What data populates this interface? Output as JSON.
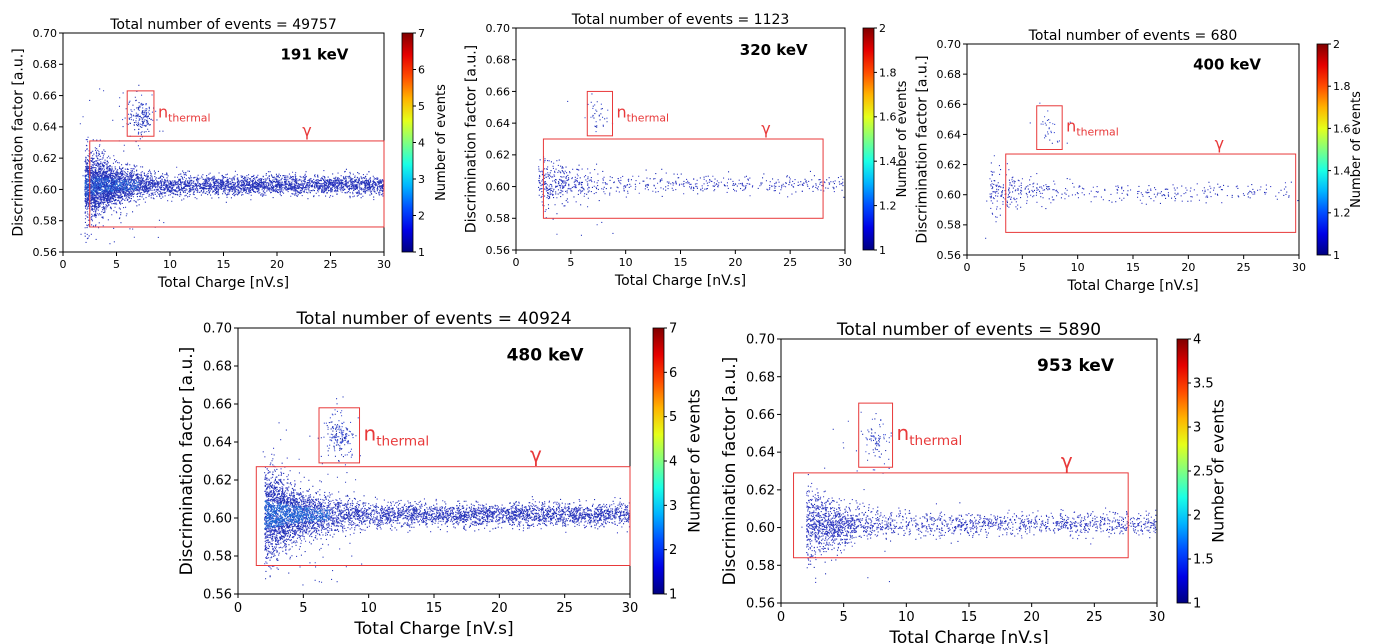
{
  "chart_data": [
    {
      "type": "heatmap",
      "title": "Total number of events = 49757",
      "energy_label": "191 keV",
      "xlabel": "Total Charge [nV.s]",
      "ylabel": "Discrimination factor [a.u.]",
      "xlim": [
        0,
        30
      ],
      "ylim": [
        0.56,
        0.7
      ],
      "xticks": [
        0,
        5,
        10,
        15,
        20,
        25,
        30
      ],
      "yticks": [
        0.56,
        0.58,
        0.6,
        0.62,
        0.64,
        0.66,
        0.68,
        0.7
      ],
      "colorbar": {
        "label": "Number of events",
        "min": 1,
        "max": 7,
        "ticks": [
          1,
          2,
          3,
          4,
          5,
          6,
          7
        ]
      },
      "regions": [
        {
          "label": "n",
          "label_sub": "thermal",
          "x": [
            6.0,
            8.5
          ],
          "y": [
            0.634,
            0.663
          ]
        },
        {
          "label": "γ",
          "x": [
            2.5,
            30.0
          ],
          "y": [
            0.576,
            0.631
          ]
        }
      ],
      "distribution": {
        "gamma_center": 0.603,
        "gamma_spread_low_charge": 0.012,
        "gamma_spread_high_charge": 0.003,
        "thermal_center_x": 7.3,
        "thermal_center_y": 0.646,
        "density": "high"
      }
    },
    {
      "type": "heatmap",
      "title": "Total number of events = 1123",
      "energy_label": "320 keV",
      "xlabel": "Total Charge [nV.s]",
      "ylabel": "Discrimination factor [a.u.]",
      "xlim": [
        0,
        30
      ],
      "ylim": [
        0.56,
        0.7
      ],
      "xticks": [
        0,
        5,
        10,
        15,
        20,
        25,
        30
      ],
      "yticks": [
        0.56,
        0.58,
        0.6,
        0.62,
        0.64,
        0.66,
        0.68,
        0.7
      ],
      "colorbar": {
        "label": "Number of events",
        "min": 1.0,
        "max": 2.0,
        "ticks": [
          1.0,
          1.2,
          1.4,
          1.6,
          1.8,
          2.0
        ]
      },
      "regions": [
        {
          "label": "n",
          "label_sub": "thermal",
          "x": [
            6.5,
            8.8
          ],
          "y": [
            0.632,
            0.66
          ]
        },
        {
          "label": "γ",
          "x": [
            2.5,
            28.0
          ],
          "y": [
            0.58,
            0.63
          ]
        }
      ],
      "distribution": {
        "gamma_center": 0.602,
        "gamma_spread_low_charge": 0.009,
        "gamma_spread_high_charge": 0.003,
        "thermal_center_x": 7.5,
        "thermal_center_y": 0.645,
        "density": "low"
      }
    },
    {
      "type": "heatmap",
      "title": "Total number of events = 680",
      "energy_label": "400 keV",
      "xlabel": "Total Charge [nV.s]",
      "ylabel": "Discrimination factor [a.u.]",
      "xlim": [
        0,
        30
      ],
      "ylim": [
        0.56,
        0.7
      ],
      "xticks": [
        0,
        5,
        10,
        15,
        20,
        25,
        30
      ],
      "yticks": [
        0.56,
        0.58,
        0.6,
        0.62,
        0.64,
        0.66,
        0.68,
        0.7
      ],
      "colorbar": {
        "label": "Number of events",
        "min": 1.0,
        "max": 2.0,
        "ticks": [
          1.0,
          1.2,
          1.4,
          1.6,
          1.8,
          2.0
        ]
      },
      "regions": [
        {
          "label": "n",
          "label_sub": "thermal",
          "x": [
            6.3,
            8.6
          ],
          "y": [
            0.63,
            0.659
          ]
        },
        {
          "label": "γ",
          "x": [
            3.5,
            29.7
          ],
          "y": [
            0.575,
            0.627
          ]
        }
      ],
      "distribution": {
        "gamma_center": 0.602,
        "gamma_spread_low_charge": 0.009,
        "gamma_spread_high_charge": 0.003,
        "thermal_center_x": 7.4,
        "thermal_center_y": 0.644,
        "density": "very-low"
      }
    },
    {
      "type": "heatmap",
      "title": "Total number of events = 40924",
      "energy_label": "480 keV",
      "xlabel": "Total Charge [nV.s]",
      "ylabel": "Discrimination factor [a.u.]",
      "xlim": [
        0,
        30
      ],
      "ylim": [
        0.56,
        0.7
      ],
      "xticks": [
        0,
        5,
        10,
        15,
        20,
        25,
        30
      ],
      "yticks": [
        0.56,
        0.58,
        0.6,
        0.62,
        0.64,
        0.66,
        0.68,
        0.7
      ],
      "colorbar": {
        "label": "Number of events",
        "min": 1,
        "max": 7,
        "ticks": [
          1,
          2,
          3,
          4,
          5,
          6,
          7
        ]
      },
      "regions": [
        {
          "label": "n",
          "label_sub": "thermal",
          "x": [
            6.2,
            9.3
          ],
          "y": [
            0.629,
            0.658
          ]
        },
        {
          "label": "γ",
          "x": [
            1.4,
            30.0
          ],
          "y": [
            0.575,
            0.627
          ]
        }
      ],
      "distribution": {
        "gamma_center": 0.602,
        "gamma_spread_low_charge": 0.013,
        "gamma_spread_high_charge": 0.003,
        "thermal_center_x": 7.7,
        "thermal_center_y": 0.643,
        "density": "high"
      }
    },
    {
      "type": "heatmap",
      "title": "Total number of events = 5890",
      "energy_label": "953 keV",
      "xlabel": "Total Charge [nV.s]",
      "ylabel": "Discrimination factor [a.u.]",
      "xlim": [
        0,
        30
      ],
      "ylim": [
        0.56,
        0.7
      ],
      "xticks": [
        0,
        5,
        10,
        15,
        20,
        25,
        30
      ],
      "yticks": [
        0.56,
        0.58,
        0.6,
        0.62,
        0.64,
        0.66,
        0.68,
        0.7
      ],
      "colorbar": {
        "label": "Number of events",
        "min": 1.0,
        "max": 4.0,
        "ticks": [
          1.0,
          1.5,
          2.0,
          2.5,
          3.0,
          3.5,
          4.0
        ]
      },
      "regions": [
        {
          "label": "n",
          "label_sub": "thermal",
          "x": [
            6.2,
            8.9
          ],
          "y": [
            0.632,
            0.666
          ]
        },
        {
          "label": "γ",
          "x": [
            1.0,
            27.7
          ],
          "y": [
            0.584,
            0.629
          ]
        }
      ],
      "distribution": {
        "gamma_center": 0.602,
        "gamma_spread_low_charge": 0.01,
        "gamma_spread_high_charge": 0.003,
        "thermal_center_x": 7.5,
        "thermal_center_y": 0.646,
        "density": "medium"
      }
    }
  ]
}
